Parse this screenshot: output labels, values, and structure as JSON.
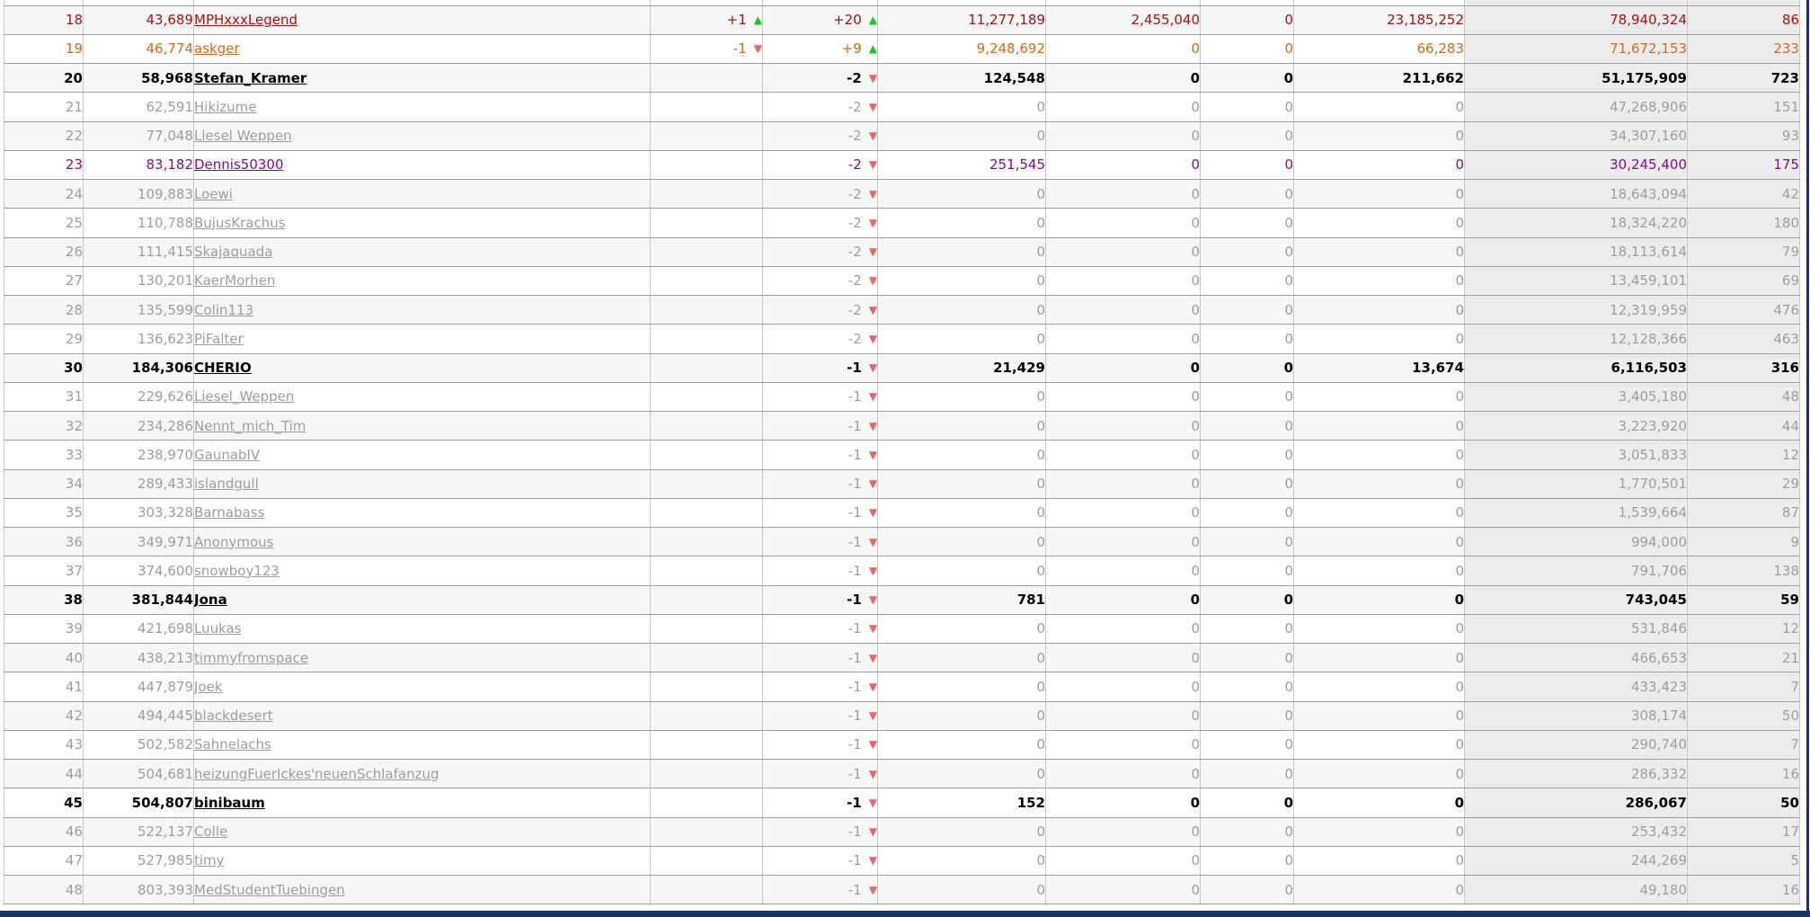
{
  "page": {
    "description": "team member credit leaderboard table, ranks 18-48"
  },
  "icons": {
    "up": "▲",
    "down": "▼"
  },
  "colors": {
    "highlight_red": "#a21414",
    "highlight_orange": "#d2691e",
    "highlight_purple": "#870d87",
    "emphasis_black": "#000000",
    "default_gray": "#9d9d9d",
    "arrow_up_green": "#1dc71d",
    "arrow_down_red": "#f7605f",
    "alt_row_bg": "#f5f6f6",
    "shaded_col_bg": "#ececec",
    "frame_navy": "#163468",
    "grid_h": "#9e9e9e",
    "grid_v": "#c8c8c8"
  },
  "rows": [
    {
      "rank": "18",
      "score": "43,689",
      "name": "MPHxxxLegend",
      "chg1": {
        "val": "+1",
        "dir": "up"
      },
      "chg2": {
        "val": "+20",
        "dir": "up"
      },
      "n1": "11,277,189",
      "n2": "2,455,040",
      "n3": "0",
      "n4": "23,185,252",
      "credit": "78,940,324",
      "last": "86",
      "style": "red"
    },
    {
      "rank": "19",
      "score": "46,774",
      "name": "askger",
      "chg1": {
        "val": "-1",
        "dir": "down"
      },
      "chg2": {
        "val": "+9",
        "dir": "up"
      },
      "n1": "9,248,692",
      "n2": "0",
      "n3": "0",
      "n4": "66,283",
      "credit": "71,672,153",
      "last": "233",
      "style": "orange"
    },
    {
      "rank": "20",
      "score": "58,968",
      "name": "Stefan_Kramer",
      "chg1": null,
      "chg2": {
        "val": "-2",
        "dir": "down"
      },
      "n1": "124,548",
      "n2": "0",
      "n3": "0",
      "n4": "211,662",
      "credit": "51,175,909",
      "last": "723",
      "style": "black"
    },
    {
      "rank": "21",
      "score": "62,591",
      "name": "Hikizume",
      "chg1": null,
      "chg2": {
        "val": "-2",
        "dir": "down"
      },
      "n1": "0",
      "n2": "0",
      "n3": "0",
      "n4": "0",
      "credit": "47,268,906",
      "last": "151",
      "style": "gray"
    },
    {
      "rank": "22",
      "score": "77,048",
      "name": "Liesel Weppen",
      "chg1": null,
      "chg2": {
        "val": "-2",
        "dir": "down"
      },
      "n1": "0",
      "n2": "0",
      "n3": "0",
      "n4": "0",
      "credit": "34,307,160",
      "last": "93",
      "style": "gray"
    },
    {
      "rank": "23",
      "score": "83,182",
      "name": "Dennis50300",
      "chg1": null,
      "chg2": {
        "val": "-2",
        "dir": "down"
      },
      "n1": "251,545",
      "n2": "0",
      "n3": "0",
      "n4": "0",
      "credit": "30,245,400",
      "last": "175",
      "style": "purple"
    },
    {
      "rank": "24",
      "score": "109,883",
      "name": "Loewi",
      "chg1": null,
      "chg2": {
        "val": "-2",
        "dir": "down"
      },
      "n1": "0",
      "n2": "0",
      "n3": "0",
      "n4": "0",
      "credit": "18,643,094",
      "last": "42",
      "style": "gray"
    },
    {
      "rank": "25",
      "score": "110,788",
      "name": "BujusKrachus",
      "chg1": null,
      "chg2": {
        "val": "-2",
        "dir": "down"
      },
      "n1": "0",
      "n2": "0",
      "n3": "0",
      "n4": "0",
      "credit": "18,324,220",
      "last": "180",
      "style": "gray"
    },
    {
      "rank": "26",
      "score": "111,415",
      "name": "Skajaquada",
      "chg1": null,
      "chg2": {
        "val": "-2",
        "dir": "down"
      },
      "n1": "0",
      "n2": "0",
      "n3": "0",
      "n4": "0",
      "credit": "18,113,614",
      "last": "79",
      "style": "gray"
    },
    {
      "rank": "27",
      "score": "130,201",
      "name": "KaerMorhen",
      "chg1": null,
      "chg2": {
        "val": "-2",
        "dir": "down"
      },
      "n1": "0",
      "n2": "0",
      "n3": "0",
      "n4": "0",
      "credit": "13,459,101",
      "last": "69",
      "style": "gray"
    },
    {
      "rank": "28",
      "score": "135,599",
      "name": "Colin113",
      "chg1": null,
      "chg2": {
        "val": "-2",
        "dir": "down"
      },
      "n1": "0",
      "n2": "0",
      "n3": "0",
      "n4": "0",
      "credit": "12,319,959",
      "last": "476",
      "style": "gray"
    },
    {
      "rank": "29",
      "score": "136,623",
      "name": "PiFalter",
      "chg1": null,
      "chg2": {
        "val": "-2",
        "dir": "down"
      },
      "n1": "0",
      "n2": "0",
      "n3": "0",
      "n4": "0",
      "credit": "12,128,366",
      "last": "463",
      "style": "gray"
    },
    {
      "rank": "30",
      "score": "184,306",
      "name": "CHERIO",
      "chg1": null,
      "chg2": {
        "val": "-1",
        "dir": "down"
      },
      "n1": "21,429",
      "n2": "0",
      "n3": "0",
      "n4": "13,674",
      "credit": "6,116,503",
      "last": "316",
      "style": "black"
    },
    {
      "rank": "31",
      "score": "229,626",
      "name": "Liesel_Weppen",
      "chg1": null,
      "chg2": {
        "val": "-1",
        "dir": "down"
      },
      "n1": "0",
      "n2": "0",
      "n3": "0",
      "n4": "0",
      "credit": "3,405,180",
      "last": "48",
      "style": "gray"
    },
    {
      "rank": "32",
      "score": "234,286",
      "name": "Nennt_mich_Tim",
      "chg1": null,
      "chg2": {
        "val": "-1",
        "dir": "down"
      },
      "n1": "0",
      "n2": "0",
      "n3": "0",
      "n4": "0",
      "credit": "3,223,920",
      "last": "44",
      "style": "gray"
    },
    {
      "rank": "33",
      "score": "238,970",
      "name": "GaunabIV",
      "chg1": null,
      "chg2": {
        "val": "-1",
        "dir": "down"
      },
      "n1": "0",
      "n2": "0",
      "n3": "0",
      "n4": "0",
      "credit": "3,051,833",
      "last": "12",
      "style": "gray"
    },
    {
      "rank": "34",
      "score": "289,433",
      "name": "islandgull",
      "chg1": null,
      "chg2": {
        "val": "-1",
        "dir": "down"
      },
      "n1": "0",
      "n2": "0",
      "n3": "0",
      "n4": "0",
      "credit": "1,770,501",
      "last": "29",
      "style": "gray"
    },
    {
      "rank": "35",
      "score": "303,328",
      "name": "Barnabass",
      "chg1": null,
      "chg2": {
        "val": "-1",
        "dir": "down"
      },
      "n1": "0",
      "n2": "0",
      "n3": "0",
      "n4": "0",
      "credit": "1,539,664",
      "last": "87",
      "style": "gray"
    },
    {
      "rank": "36",
      "score": "349,971",
      "name": "Anonymous",
      "chg1": null,
      "chg2": {
        "val": "-1",
        "dir": "down"
      },
      "n1": "0",
      "n2": "0",
      "n3": "0",
      "n4": "0",
      "credit": "994,000",
      "last": "9",
      "style": "gray"
    },
    {
      "rank": "37",
      "score": "374,600",
      "name": "snowboy123",
      "chg1": null,
      "chg2": {
        "val": "-1",
        "dir": "down"
      },
      "n1": "0",
      "n2": "0",
      "n3": "0",
      "n4": "0",
      "credit": "791,706",
      "last": "138",
      "style": "gray"
    },
    {
      "rank": "38",
      "score": "381,844",
      "name": "Jona",
      "chg1": null,
      "chg2": {
        "val": "-1",
        "dir": "down"
      },
      "n1": "781",
      "n2": "0",
      "n3": "0",
      "n4": "0",
      "credit": "743,045",
      "last": "59",
      "style": "black"
    },
    {
      "rank": "39",
      "score": "421,698",
      "name": "Luukas",
      "chg1": null,
      "chg2": {
        "val": "-1",
        "dir": "down"
      },
      "n1": "0",
      "n2": "0",
      "n3": "0",
      "n4": "0",
      "credit": "531,846",
      "last": "12",
      "style": "gray"
    },
    {
      "rank": "40",
      "score": "438,213",
      "name": "timmyfromspace",
      "chg1": null,
      "chg2": {
        "val": "-1",
        "dir": "down"
      },
      "n1": "0",
      "n2": "0",
      "n3": "0",
      "n4": "0",
      "credit": "466,653",
      "last": "21",
      "style": "gray"
    },
    {
      "rank": "41",
      "score": "447,879",
      "name": "Joek",
      "chg1": null,
      "chg2": {
        "val": "-1",
        "dir": "down"
      },
      "n1": "0",
      "n2": "0",
      "n3": "0",
      "n4": "0",
      "credit": "433,423",
      "last": "7",
      "style": "gray"
    },
    {
      "rank": "42",
      "score": "494,445",
      "name": "blackdesert",
      "chg1": null,
      "chg2": {
        "val": "-1",
        "dir": "down"
      },
      "n1": "0",
      "n2": "0",
      "n3": "0",
      "n4": "0",
      "credit": "308,174",
      "last": "50",
      "style": "gray"
    },
    {
      "rank": "43",
      "score": "502,582",
      "name": "Sahnelachs",
      "chg1": null,
      "chg2": {
        "val": "-1",
        "dir": "down"
      },
      "n1": "0",
      "n2": "0",
      "n3": "0",
      "n4": "0",
      "credit": "290,740",
      "last": "7",
      "style": "gray"
    },
    {
      "rank": "44",
      "score": "504,681",
      "name": "heizungFuerIckes'neuenSchlafanzug",
      "chg1": null,
      "chg2": {
        "val": "-1",
        "dir": "down"
      },
      "n1": "0",
      "n2": "0",
      "n3": "0",
      "n4": "0",
      "credit": "286,332",
      "last": "16",
      "style": "gray"
    },
    {
      "rank": "45",
      "score": "504,807",
      "name": "binibaum",
      "chg1": null,
      "chg2": {
        "val": "-1",
        "dir": "down"
      },
      "n1": "152",
      "n2": "0",
      "n3": "0",
      "n4": "0",
      "credit": "286,067",
      "last": "50",
      "style": "black"
    },
    {
      "rank": "46",
      "score": "522,137",
      "name": "Colle",
      "chg1": null,
      "chg2": {
        "val": "-1",
        "dir": "down"
      },
      "n1": "0",
      "n2": "0",
      "n3": "0",
      "n4": "0",
      "credit": "253,432",
      "last": "17",
      "style": "gray"
    },
    {
      "rank": "47",
      "score": "527,985",
      "name": "timy",
      "chg1": null,
      "chg2": {
        "val": "-1",
        "dir": "down"
      },
      "n1": "0",
      "n2": "0",
      "n3": "0",
      "n4": "0",
      "credit": "244,269",
      "last": "5",
      "style": "gray"
    },
    {
      "rank": "48",
      "score": "803,393",
      "name": "MedStudentTuebingen",
      "chg1": null,
      "chg2": {
        "val": "-1",
        "dir": "down"
      },
      "n1": "0",
      "n2": "0",
      "n3": "0",
      "n4": "0",
      "credit": "49,180",
      "last": "16",
      "style": "gray"
    }
  ]
}
